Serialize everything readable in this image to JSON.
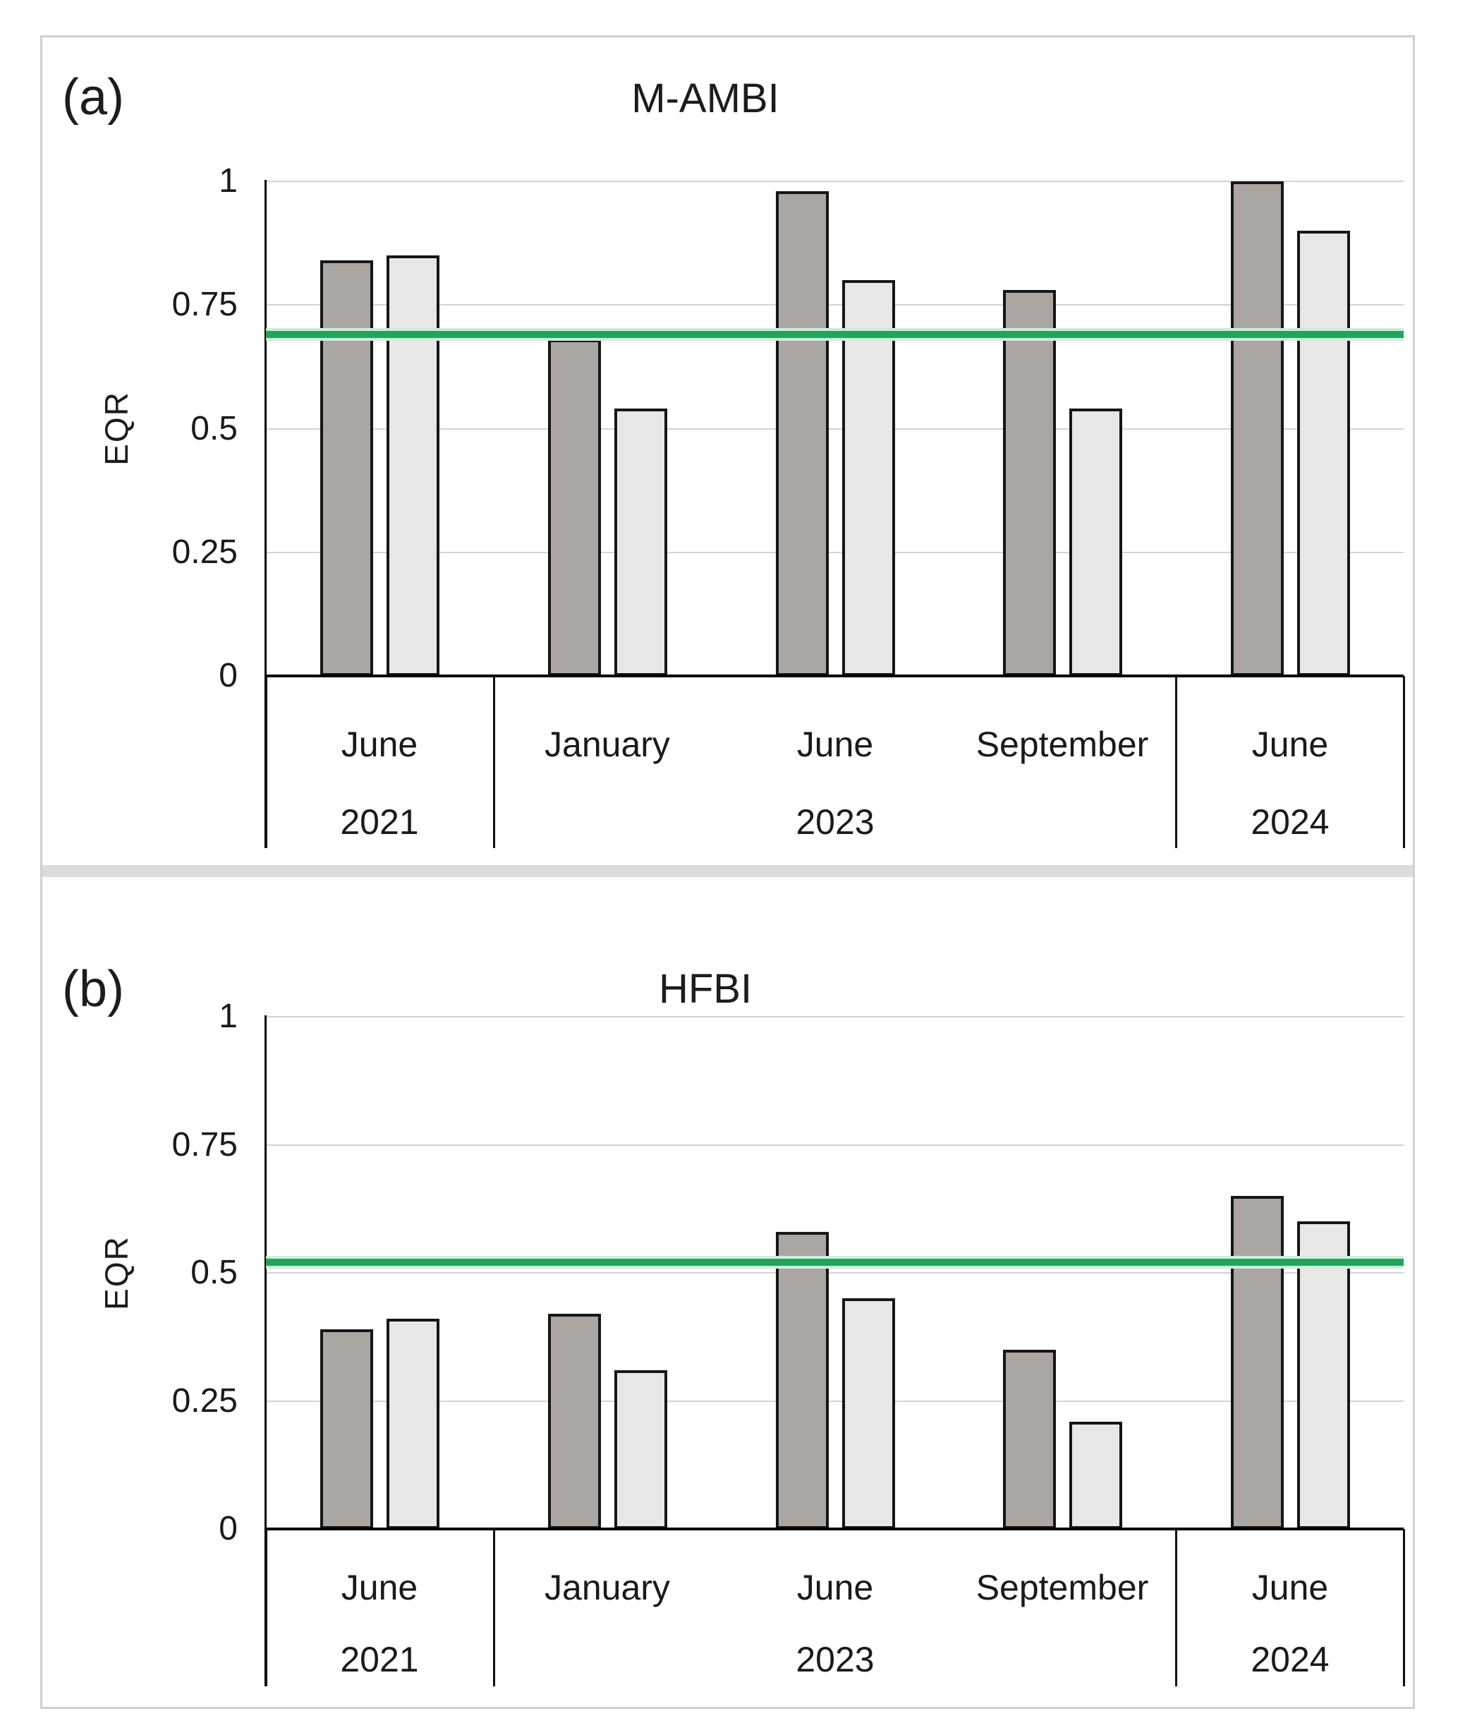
{
  "figure": {
    "description": "Two stacked bar panels of benthic index EQR values with threshold lines",
    "accent_green": "#21a55d",
    "bar_dark_fill": "#aca6a3",
    "bar_light_fill": "#e9e7e6",
    "bar_outline": "#161616",
    "gridline_color": "#d4d4d4"
  },
  "chart_data": [
    {
      "id": "a",
      "type": "bar",
      "panel_label": "(a)",
      "title": "M-AMBI",
      "ylabel": "EQR",
      "ylim": [
        0,
        1
      ],
      "yticks": [
        1,
        0.75,
        0.5,
        0.25,
        0
      ],
      "grid": true,
      "legend_position": "none",
      "categories": [
        "June",
        "January",
        "June",
        "September",
        "June"
      ],
      "year_groups": [
        {
          "label": "2021",
          "span": 1
        },
        {
          "label": "2023",
          "span": 3
        },
        {
          "label": "2024",
          "span": 1
        }
      ],
      "series": [
        {
          "name": "series-dark",
          "color": "#aca6a3",
          "values": [
            0.84,
            0.68,
            0.98,
            0.78,
            1.0
          ]
        },
        {
          "name": "series-light",
          "color": "#e9e7e6",
          "values": [
            0.85,
            0.54,
            0.8,
            0.54,
            0.9
          ]
        }
      ],
      "threshold_line": {
        "value": 0.69,
        "color": "#21a55d"
      }
    },
    {
      "id": "b",
      "type": "bar",
      "panel_label": "(b)",
      "title": "HFBI",
      "ylabel": "EQR",
      "ylim": [
        0,
        1
      ],
      "yticks": [
        1,
        0.75,
        0.5,
        0.25,
        0
      ],
      "grid": true,
      "legend_position": "none",
      "categories": [
        "June",
        "January",
        "June",
        "September",
        "June"
      ],
      "year_groups": [
        {
          "label": "2021",
          "span": 1
        },
        {
          "label": "2023",
          "span": 3
        },
        {
          "label": "2024",
          "span": 1
        }
      ],
      "series": [
        {
          "name": "series-dark",
          "color": "#aca6a3",
          "values": [
            0.39,
            0.42,
            0.58,
            0.35,
            0.65
          ]
        },
        {
          "name": "series-light",
          "color": "#e9e7e6",
          "values": [
            0.41,
            0.31,
            0.45,
            0.21,
            0.6
          ]
        }
      ],
      "threshold_line": {
        "value": 0.52,
        "color": "#21a55d"
      }
    }
  ]
}
